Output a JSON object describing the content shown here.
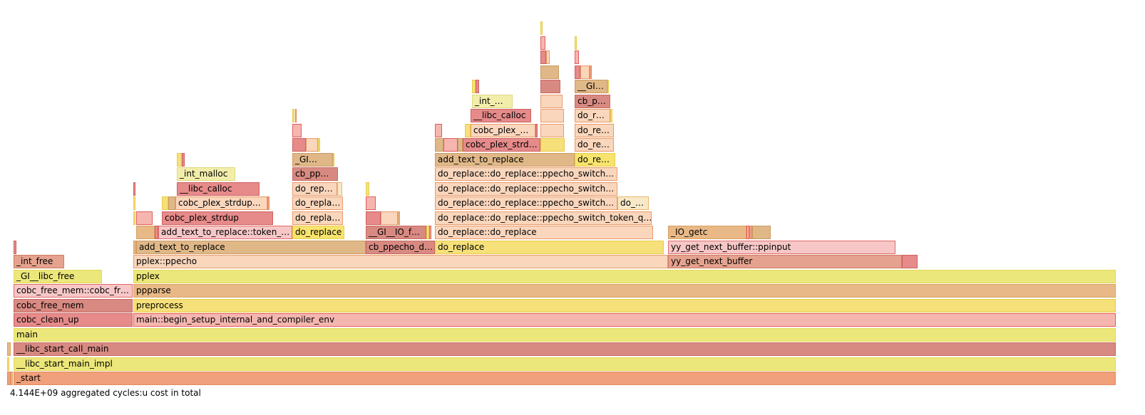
{
  "colors": {
    "A": {
      "fill": "#f0a07a",
      "stroke": "#e58a60"
    },
    "B": {
      "fill": "#ece77a",
      "stroke": "#e2d95c"
    },
    "C": {
      "fill": "#d88a82",
      "stroke": "#c86a62"
    },
    "D": {
      "fill": "#f5b6b0",
      "stroke": "#e65a5a"
    },
    "E": {
      "fill": "#e8b986",
      "stroke": "#d9a060"
    },
    "F": {
      "fill": "#f5e07a",
      "stroke": "#e8cc4a"
    },
    "G": {
      "fill": "#e68a8a",
      "stroke": "#d06060"
    },
    "H": {
      "fill": "#f9d6bc",
      "stroke": "#e99a6a"
    },
    "I": {
      "fill": "#e5a28e",
      "stroke": "#d07a62"
    },
    "J": {
      "fill": "#f7c7c7",
      "stroke": "#e06a6a"
    },
    "K": {
      "fill": "#f7e46e",
      "stroke": "#e8cc4a"
    },
    "L": {
      "fill": "#e0b888",
      "stroke": "#cc9a62"
    },
    "M": {
      "fill": "#f2eeaa",
      "stroke": "#e0d880"
    },
    "N": {
      "fill": "#f7e9c8",
      "stroke": "#eab56a"
    }
  },
  "chart_data": {
    "type": "flamegraph",
    "total_label": "4.144E+09 aggregated cycles:u cost in total",
    "total_width": 1546,
    "frames": [
      {
        "depth": 0,
        "start": 0,
        "width": 1546,
        "label": "_start",
        "color": "A"
      },
      {
        "depth": 0,
        "start": -9,
        "width": 5,
        "label": "",
        "color": "A"
      },
      {
        "depth": 0,
        "start": -4,
        "width": 3,
        "label": "",
        "color": "E"
      },
      {
        "depth": 1,
        "start": 0,
        "width": 1546,
        "label": "__libc_start_main_impl",
        "color": "B"
      },
      {
        "depth": 1,
        "start": -9,
        "width": 3,
        "label": "",
        "color": "F"
      },
      {
        "depth": 2,
        "start": 0,
        "width": 1546,
        "label": "__libc_start_call_main",
        "color": "C"
      },
      {
        "depth": 2,
        "start": -9,
        "width": 5,
        "label": "",
        "color": "E"
      },
      {
        "depth": 3,
        "start": 0,
        "width": 1546,
        "label": "main",
        "color": "B"
      },
      {
        "depth": 4,
        "start": 0,
        "width": 167,
        "label": "cobc_clean_up",
        "color": "G"
      },
      {
        "depth": 4,
        "start": 168,
        "width": 1378,
        "label": "main::begin_setup_internal_and_compiler_env",
        "color": "D"
      },
      {
        "depth": 5,
        "start": 0,
        "width": 167,
        "label": "cobc_free_mem",
        "color": "C"
      },
      {
        "depth": 5,
        "start": 168,
        "width": 1378,
        "label": "preprocess",
        "color": "F"
      },
      {
        "depth": 6,
        "start": 0,
        "width": 167,
        "label": "cobc_free_mem::cobc_fr…",
        "color": "J"
      },
      {
        "depth": 6,
        "start": 168,
        "width": 1378,
        "label": "ppparse",
        "color": "E"
      },
      {
        "depth": 7,
        "start": 0,
        "width": 124,
        "label": "_GI__libc_free",
        "color": "B"
      },
      {
        "depth": 7,
        "start": 168,
        "width": 1378,
        "label": "pplex",
        "color": "B"
      },
      {
        "depth": 8,
        "start": 0,
        "width": 71,
        "label": "_int_free",
        "color": "I"
      },
      {
        "depth": 8,
        "start": 168,
        "width": 750,
        "label": "pplex::ppecho",
        "color": "H"
      },
      {
        "depth": 8,
        "start": 918,
        "width": 328,
        "label": "yy_get_next_buffer",
        "color": "I"
      },
      {
        "depth": 8,
        "start": 1246,
        "width": 22,
        "label": "",
        "color": "G"
      },
      {
        "depth": 9,
        "start": 0,
        "width": 4,
        "label": "",
        "color": "G"
      },
      {
        "depth": 9,
        "start": 168,
        "width": 4,
        "label": "",
        "color": "E"
      },
      {
        "depth": 9,
        "start": 172,
        "width": 322,
        "label": "add_text_to_replace",
        "color": "L"
      },
      {
        "depth": 9,
        "start": 494,
        "width": 97,
        "label": "cb_ppecho_d…",
        "color": "C"
      },
      {
        "depth": 9,
        "start": 591,
        "width": 321,
        "label": "do_replace",
        "color": "F"
      },
      {
        "depth": 9,
        "start": 918,
        "width": 319,
        "label": "yy_get_next_buffer::ppinput",
        "color": "J"
      },
      {
        "depth": 10,
        "start": 172,
        "width": 26,
        "label": "",
        "color": "E"
      },
      {
        "depth": 10,
        "start": 198,
        "width": 5,
        "label": "",
        "color": "G"
      },
      {
        "depth": 10,
        "start": 203,
        "width": 188,
        "label": "add_text_to_replace::token_…",
        "color": "J"
      },
      {
        "depth": 10,
        "start": 391,
        "width": 73,
        "label": "do_replace",
        "color": "K"
      },
      {
        "depth": 10,
        "start": 494,
        "width": 85,
        "label": "__GI__IO_f…",
        "color": "C"
      },
      {
        "depth": 10,
        "start": 579,
        "width": 4,
        "label": "",
        "color": "F"
      },
      {
        "depth": 10,
        "start": 583,
        "width": 3,
        "label": "",
        "color": "D"
      },
      {
        "depth": 10,
        "start": 591,
        "width": 306,
        "label": "do_replace::do_replace",
        "color": "H"
      },
      {
        "depth": 10,
        "start": 918,
        "width": 110,
        "label": "_IO_getc",
        "color": "E"
      },
      {
        "depth": 10,
        "start": 1028,
        "width": 4,
        "label": "",
        "color": "D"
      },
      {
        "depth": 10,
        "start": 1032,
        "width": 4,
        "label": "",
        "color": "A"
      },
      {
        "depth": 10,
        "start": 1036,
        "width": 26,
        "label": "",
        "color": "L"
      },
      {
        "depth": 11,
        "start": 168,
        "width": 3,
        "label": "",
        "color": "F"
      },
      {
        "depth": 11,
        "start": 172,
        "width": 23,
        "label": "",
        "color": "D"
      },
      {
        "depth": 11,
        "start": 208,
        "width": 156,
        "label": "cobc_plex_strdup",
        "color": "G"
      },
      {
        "depth": 11,
        "start": 391,
        "width": 71,
        "label": "do_repla…",
        "color": "H"
      },
      {
        "depth": 11,
        "start": 494,
        "width": 21,
        "label": "",
        "color": "G"
      },
      {
        "depth": 11,
        "start": 515,
        "width": 24,
        "label": "",
        "color": "H"
      },
      {
        "depth": 11,
        "start": 539,
        "width": 3,
        "label": "",
        "color": "E"
      },
      {
        "depth": 11,
        "start": 591,
        "width": 304,
        "label": "do_replace::do_replace::ppecho_switch_token_q…",
        "color": "H"
      },
      {
        "depth": 12,
        "start": 168,
        "width": 3,
        "label": "",
        "color": "F"
      },
      {
        "depth": 12,
        "start": 208,
        "width": 9,
        "label": "",
        "color": "F"
      },
      {
        "depth": 12,
        "start": 217,
        "width": 10,
        "label": "",
        "color": "L"
      },
      {
        "depth": 12,
        "start": 227,
        "width": 129,
        "label": "cobc_plex_strdup…",
        "color": "H"
      },
      {
        "depth": 12,
        "start": 356,
        "width": 3,
        "label": "",
        "color": "A"
      },
      {
        "depth": 12,
        "start": 391,
        "width": 71,
        "label": "do_repla…",
        "color": "H"
      },
      {
        "depth": 12,
        "start": 494,
        "width": 14,
        "label": "",
        "color": "D"
      },
      {
        "depth": 12,
        "start": 591,
        "width": 256,
        "label": "do_replace::do_replace::ppecho_switch…",
        "color": "H"
      },
      {
        "depth": 12,
        "start": 847,
        "width": 44,
        "label": "do_…",
        "color": "N"
      },
      {
        "depth": 13,
        "start": 168,
        "width": 3,
        "label": "",
        "color": "G"
      },
      {
        "depth": 13,
        "start": 229,
        "width": 116,
        "label": "__libc_calloc",
        "color": "G"
      },
      {
        "depth": 13,
        "start": 391,
        "width": 63,
        "label": "do_rep…",
        "color": "H"
      },
      {
        "depth": 13,
        "start": 454,
        "width": 7,
        "label": "",
        "color": "N"
      },
      {
        "depth": 13,
        "start": 494,
        "width": 5,
        "label": "",
        "color": "F"
      },
      {
        "depth": 13,
        "start": 591,
        "width": 256,
        "label": "do_replace::do_replace::ppecho_switch…",
        "color": "H"
      },
      {
        "depth": 14,
        "start": 229,
        "width": 82,
        "label": "_int_malloc",
        "color": "M"
      },
      {
        "depth": 14,
        "start": 391,
        "width": 64,
        "label": "cb_pp…",
        "color": "C"
      },
      {
        "depth": 14,
        "start": 591,
        "width": 256,
        "label": "do_replace::do_replace::ppecho_switch…",
        "color": "H"
      },
      {
        "depth": 15,
        "start": 229,
        "width": 7,
        "label": "",
        "color": "F"
      },
      {
        "depth": 15,
        "start": 236,
        "width": 4,
        "label": "",
        "color": "G"
      },
      {
        "depth": 15,
        "start": 391,
        "width": 57,
        "label": "_GI…",
        "color": "L"
      },
      {
        "depth": 15,
        "start": 448,
        "width": 2,
        "label": "",
        "color": "F"
      },
      {
        "depth": 15,
        "start": 591,
        "width": 196,
        "label": "add_text_to_replace",
        "color": "L"
      },
      {
        "depth": 15,
        "start": 787,
        "width": 57,
        "label": "do_re…",
        "color": "K"
      },
      {
        "depth": 16,
        "start": 391,
        "width": 19,
        "label": "",
        "color": "G"
      },
      {
        "depth": 16,
        "start": 410,
        "width": 17,
        "label": "",
        "color": "H"
      },
      {
        "depth": 16,
        "start": 427,
        "width": 3,
        "label": "",
        "color": "F"
      },
      {
        "depth": 16,
        "start": 591,
        "width": 12,
        "label": "",
        "color": "L"
      },
      {
        "depth": 16,
        "start": 603,
        "width": 20,
        "label": "",
        "color": "D"
      },
      {
        "depth": 16,
        "start": 623,
        "width": 7,
        "label": "",
        "color": "L"
      },
      {
        "depth": 16,
        "start": 630,
        "width": 109,
        "label": "cobc_plex_strd…",
        "color": "G"
      },
      {
        "depth": 16,
        "start": 739,
        "width": 34,
        "label": "",
        "color": "F"
      },
      {
        "depth": 16,
        "start": 787,
        "width": 55,
        "label": "do_re…",
        "color": "H"
      },
      {
        "depth": 17,
        "start": 391,
        "width": 13,
        "label": "",
        "color": "D"
      },
      {
        "depth": 17,
        "start": 591,
        "width": 10,
        "label": "",
        "color": "D"
      },
      {
        "depth": 17,
        "start": 633,
        "width": 8,
        "label": "",
        "color": "F"
      },
      {
        "depth": 17,
        "start": 641,
        "width": 91,
        "label": "cobc_plex_…",
        "color": "H"
      },
      {
        "depth": 17,
        "start": 732,
        "width": 3,
        "label": "",
        "color": "G"
      },
      {
        "depth": 17,
        "start": 739,
        "width": 33,
        "label": "",
        "color": "H"
      },
      {
        "depth": 17,
        "start": 787,
        "width": 55,
        "label": "do_re…",
        "color": "H"
      },
      {
        "depth": 18,
        "start": 391,
        "width": 3,
        "label": "",
        "color": "F"
      },
      {
        "depth": 18,
        "start": 395,
        "width": 2,
        "label": "",
        "color": "A"
      },
      {
        "depth": 18,
        "start": 641,
        "width": 85,
        "label": "__libc_calloc",
        "color": "G"
      },
      {
        "depth": 18,
        "start": 739,
        "width": 33,
        "label": "",
        "color": "H"
      },
      {
        "depth": 18,
        "start": 787,
        "width": 50,
        "label": "do_r…",
        "color": "H"
      },
      {
        "depth": 18,
        "start": 837,
        "width": 3,
        "label": "",
        "color": "F"
      },
      {
        "depth": 19,
        "start": 643,
        "width": 57,
        "label": "_int_…",
        "color": "M"
      },
      {
        "depth": 19,
        "start": 739,
        "width": 31,
        "label": "",
        "color": "H"
      },
      {
        "depth": 19,
        "start": 787,
        "width": 50,
        "label": "cb_p…",
        "color": "C"
      },
      {
        "depth": 20,
        "start": 643,
        "width": 5,
        "label": "",
        "color": "F"
      },
      {
        "depth": 20,
        "start": 648,
        "width": 5,
        "label": "",
        "color": "G"
      },
      {
        "depth": 20,
        "start": 739,
        "width": 28,
        "label": "",
        "color": "C"
      },
      {
        "depth": 20,
        "start": 787,
        "width": 46,
        "label": "__GI…",
        "color": "L"
      },
      {
        "depth": 20,
        "start": 833,
        "width": 2,
        "label": "",
        "color": "F"
      },
      {
        "depth": 21,
        "start": 739,
        "width": 26,
        "label": "",
        "color": "L"
      },
      {
        "depth": 21,
        "start": 787,
        "width": 8,
        "label": "",
        "color": "G"
      },
      {
        "depth": 21,
        "start": 795,
        "width": 13,
        "label": "",
        "color": "H"
      },
      {
        "depth": 21,
        "start": 808,
        "width": 3,
        "label": "",
        "color": "A"
      },
      {
        "depth": 22,
        "start": 739,
        "width": 8,
        "label": "",
        "color": "G"
      },
      {
        "depth": 22,
        "start": 747,
        "width": 5,
        "label": "",
        "color": "H"
      },
      {
        "depth": 22,
        "start": 787,
        "width": 6,
        "label": "",
        "color": "D"
      },
      {
        "depth": 23,
        "start": 739,
        "width": 7,
        "label": "",
        "color": "D"
      },
      {
        "depth": 23,
        "start": 787,
        "width": 3,
        "label": "",
        "color": "F"
      },
      {
        "depth": 24,
        "start": 739,
        "width": 3,
        "label": "",
        "color": "F"
      }
    ]
  }
}
